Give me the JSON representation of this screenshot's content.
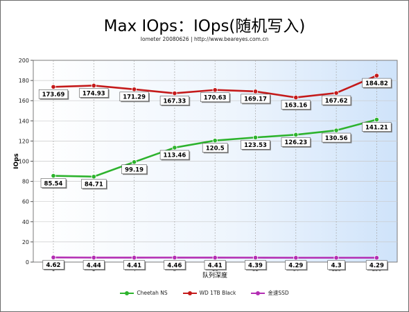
{
  "title": "Max IOps：IOps(随机写入)",
  "subtitle": "Iometer 20080626 | http://www.beareyes.com.cn",
  "chart_data": {
    "type": "line",
    "title": "Max IOps：IOps(随机写入)",
    "subtitle": "Iometer 20080626 | http://www.beareyes.com.cn",
    "xlabel": "队列深度",
    "ylabel": "IOps",
    "categories": [
      "1",
      "2",
      "4",
      "8",
      "16",
      "32",
      "64",
      "128",
      "256"
    ],
    "ylim": [
      0,
      200
    ],
    "yticks": [
      0,
      20,
      40,
      60,
      80,
      100,
      120,
      140,
      160,
      180,
      200
    ],
    "grid": true,
    "legend_position": "bottom",
    "series": [
      {
        "name": "Cheetah NS",
        "color": "#2db32d",
        "values": [
          85.54,
          84.71,
          99.19,
          113.46,
          120.5,
          123.53,
          126.23,
          130.56,
          141.21
        ],
        "labels": [
          "85.54",
          "84.71",
          "99.19",
          "113.46",
          "120.5",
          "123.53",
          "126.23",
          "130.56",
          "141.21"
        ]
      },
      {
        "name": "WD 1TB Black",
        "color": "#c41a1a",
        "values": [
          173.69,
          174.93,
          171.29,
          167.33,
          170.63,
          169.17,
          163.16,
          167.62,
          184.82
        ],
        "labels": [
          "173.69",
          "174.93",
          "171.29",
          "167.33",
          "170.63",
          "169.17",
          "163.16",
          "167.62",
          "184.82"
        ]
      },
      {
        "name": "金速SSD",
        "color": "#b32db3",
        "values": [
          4.62,
          4.44,
          4.41,
          4.46,
          4.41,
          4.39,
          4.29,
          4.3,
          4.29
        ],
        "labels": [
          "4.62",
          "4.44",
          "4.41",
          "4.46",
          "4.41",
          "4.39",
          "4.29",
          "4.3",
          "4.29"
        ]
      }
    ]
  }
}
